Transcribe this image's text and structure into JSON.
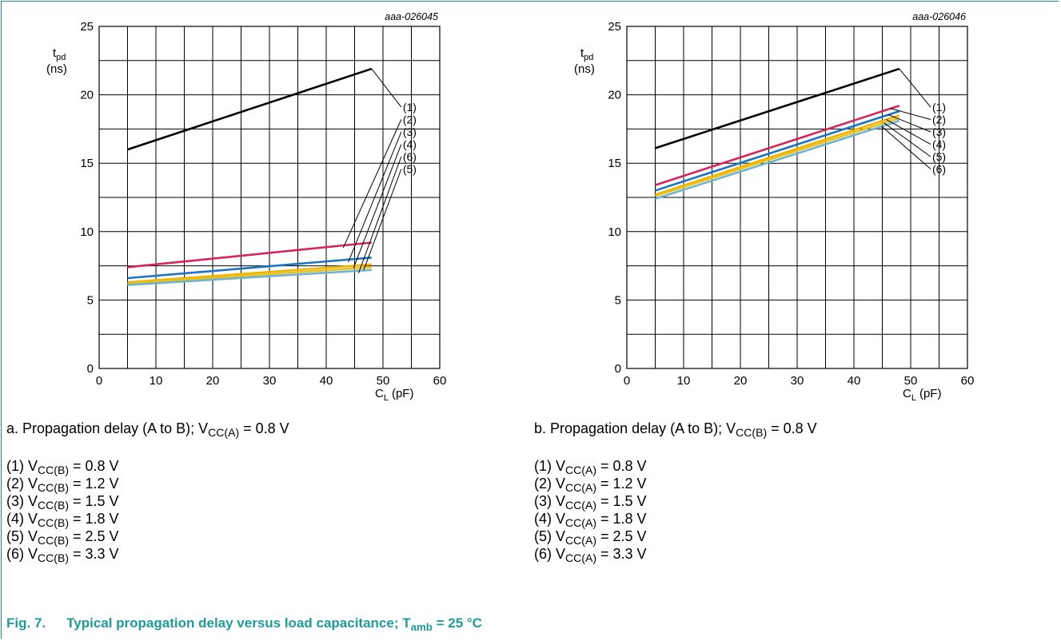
{
  "colors": {
    "grid": "#000000",
    "accent": "#1e9a9a",
    "series": [
      "#000000",
      "#d6245c",
      "#1b74c2",
      "#f0b400",
      "#e8c020",
      "#6fb3d2"
    ]
  },
  "chart_data": [
    {
      "type": "line",
      "id": "aaa-026045",
      "xlabel_main": "C",
      "xlabel_sub": "L",
      "xlabel_unit": "(pF)",
      "ylabel_main": "t",
      "ylabel_sub": "pd",
      "ylabel_unit": "(ns)",
      "xlim": [
        0,
        60
      ],
      "ylim": [
        0,
        25
      ],
      "xticks": [
        "0",
        "10",
        "20",
        "30",
        "40",
        "50",
        "60"
      ],
      "yticks": [
        "0",
        "5",
        "10",
        "15",
        "20",
        "25"
      ],
      "grid": true,
      "series": [
        {
          "label": "(1)",
          "x": [
            5,
            48
          ],
          "y": [
            16.0,
            21.9
          ]
        },
        {
          "label": "(2)",
          "x": [
            5,
            48
          ],
          "y": [
            7.4,
            9.2
          ]
        },
        {
          "label": "(3)",
          "x": [
            5,
            48
          ],
          "y": [
            6.6,
            8.1
          ]
        },
        {
          "label": "(4)",
          "x": [
            5,
            48
          ],
          "y": [
            6.3,
            7.6
          ]
        },
        {
          "label": "(5)",
          "x": [
            5,
            48
          ],
          "y": [
            6.2,
            7.4
          ]
        },
        {
          "label": "(6)",
          "x": [
            5,
            48
          ],
          "y": [
            6.1,
            7.2
          ]
        }
      ],
      "label_order": [
        "(1)",
        "(2)",
        "(3)",
        "(4)",
        "(6)",
        "(5)"
      ]
    },
    {
      "type": "line",
      "id": "aaa-026046",
      "xlabel_main": "C",
      "xlabel_sub": "L",
      "xlabel_unit": "(pF)",
      "ylabel_main": "t",
      "ylabel_sub": "pd",
      "ylabel_unit": "(ns)",
      "xlim": [
        0,
        60
      ],
      "ylim": [
        0,
        25
      ],
      "xticks": [
        "0",
        "10",
        "20",
        "30",
        "40",
        "50",
        "60"
      ],
      "yticks": [
        "0",
        "5",
        "10",
        "15",
        "20",
        "25"
      ],
      "grid": true,
      "series": [
        {
          "label": "(1)",
          "x": [
            5,
            48
          ],
          "y": [
            16.1,
            21.9
          ]
        },
        {
          "label": "(2)",
          "x": [
            5,
            48
          ],
          "y": [
            13.4,
            19.2
          ]
        },
        {
          "label": "(3)",
          "x": [
            5,
            48
          ],
          "y": [
            13.0,
            18.8
          ]
        },
        {
          "label": "(4)",
          "x": [
            5,
            48
          ],
          "y": [
            12.7,
            18.5
          ]
        },
        {
          "label": "(5)",
          "x": [
            5,
            48
          ],
          "y": [
            12.6,
            18.3
          ]
        },
        {
          "label": "(6)",
          "x": [
            5,
            48
          ],
          "y": [
            12.4,
            18.1
          ]
        }
      ],
      "label_order": [
        "(1)",
        "(2)",
        "(3)",
        "(4)",
        "(5)",
        "(6)"
      ]
    }
  ],
  "captions": {
    "a": {
      "prefix": "a. Propagation delay (A to B); V",
      "sub": "CC(A)",
      "suffix": " = 0.8 V"
    },
    "b": {
      "prefix": "b. Propagation delay (A to B); V",
      "sub": "CC(B)",
      "suffix": " = 0.8 V"
    }
  },
  "legend_a": [
    {
      "n": "(1) V",
      "sub": "CC(B)",
      "val": " = 0.8 V"
    },
    {
      "n": "(2) V",
      "sub": "CC(B)",
      "val": " = 1.2 V"
    },
    {
      "n": "(3) V",
      "sub": "CC(B)",
      "val": " = 1.5 V"
    },
    {
      "n": "(4) V",
      "sub": "CC(B)",
      "val": " = 1.8 V"
    },
    {
      "n": "(5) V",
      "sub": "CC(B)",
      "val": " = 2.5 V"
    },
    {
      "n": "(6) V",
      "sub": "CC(B)",
      "val": " = 3.3 V"
    }
  ],
  "legend_b": [
    {
      "n": "(1) V",
      "sub": "CC(A)",
      "val": " = 0.8 V"
    },
    {
      "n": "(2) V",
      "sub": "CC(A)",
      "val": " = 1.2 V"
    },
    {
      "n": "(3) V",
      "sub": "CC(A)",
      "val": " = 1.5 V"
    },
    {
      "n": "(4) V",
      "sub": "CC(A)",
      "val": " = 1.8 V"
    },
    {
      "n": "(5) V",
      "sub": "CC(A)",
      "val": " = 2.5 V"
    },
    {
      "n": "(6) V",
      "sub": "CC(A)",
      "val": " = 3.3 V"
    }
  ],
  "figure": {
    "number": "Fig. 7.",
    "title": "Typical propagation delay versus load capacitance; T",
    "title_sub": "amb",
    "title_suffix": " = 25 °C"
  }
}
